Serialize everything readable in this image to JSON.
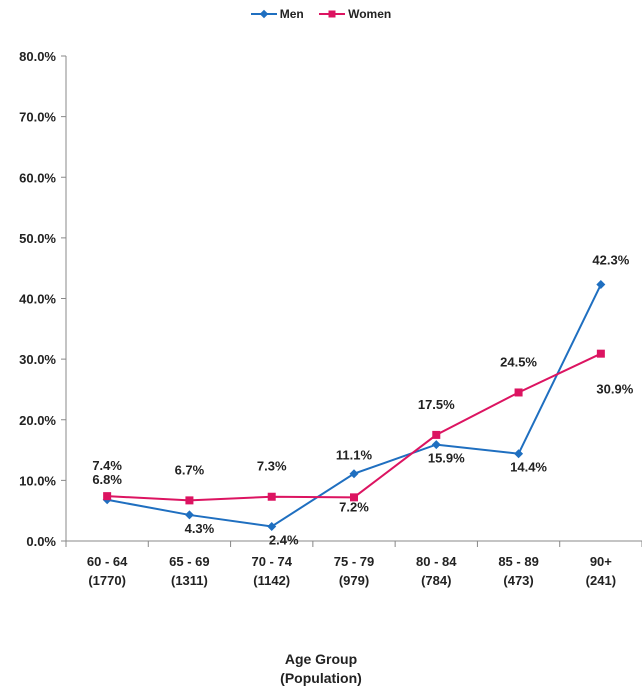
{
  "chart_data": {
    "type": "line",
    "categories": [
      [
        "60 - 64",
        "(1770)"
      ],
      [
        "65 - 69",
        "(1311)"
      ],
      [
        "70 - 74",
        "(1142)"
      ],
      [
        "75 - 79",
        "(979)"
      ],
      [
        "80 - 84",
        "(784)"
      ],
      [
        "85 - 89",
        "(473)"
      ],
      [
        "90+",
        "(241)"
      ]
    ],
    "series": [
      {
        "name": "Men",
        "color": "#1f6fc0",
        "marker": "diamond",
        "values": [
          6.8,
          4.3,
          2.4,
          11.1,
          15.9,
          14.4,
          42.3
        ],
        "labels": [
          "6.8%",
          "4.3%",
          "2.4%",
          "11.1%",
          "15.9%",
          "14.4%",
          "42.3%"
        ]
      },
      {
        "name": "Women",
        "color": "#dc1461",
        "marker": "square",
        "values": [
          7.4,
          6.7,
          7.3,
          7.2,
          17.5,
          24.5,
          30.9
        ],
        "labels": [
          "7.4%",
          "6.7%",
          "7.3%",
          "7.2%",
          "17.5%",
          "24.5%",
          "30.9%"
        ]
      }
    ],
    "yticks": [
      "0.0%",
      "10.0%",
      "20.0%",
      "30.0%",
      "40.0%",
      "50.0%",
      "60.0%",
      "70.0%",
      "80.0%"
    ],
    "ylim": [
      0,
      80
    ],
    "xlabel": [
      "Age Group",
      "(Population)"
    ],
    "ylabel": "",
    "title": "",
    "grid": false,
    "legend_position": "top-center"
  }
}
